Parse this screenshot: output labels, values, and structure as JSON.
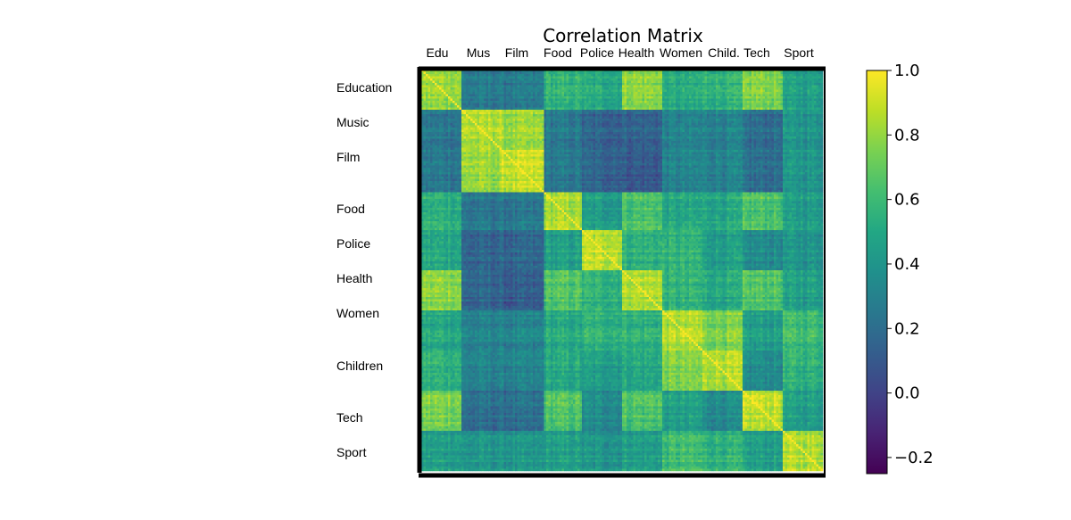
{
  "chart_data": {
    "type": "heatmap",
    "title": "Correlation Matrix",
    "colormap": "viridis",
    "categories_top": [
      "Edu",
      "Mus",
      "Film",
      "Food",
      "Police",
      "Health",
      "Women",
      "Child.",
      "Tech",
      "Sport"
    ],
    "categories_left": [
      "Education",
      "Music",
      "Film",
      "Food",
      "Police",
      "Health",
      "Women",
      "Children",
      "Tech",
      "Sport"
    ],
    "block_fractions": [
      0.1,
      0.1,
      0.1,
      0.095,
      0.1,
      0.1,
      0.1,
      0.095,
      0.1,
      0.1
    ],
    "block_correlation": [
      [
        0.8,
        0.25,
        0.25,
        0.55,
        0.5,
        0.78,
        0.5,
        0.55,
        0.75,
        0.45
      ],
      [
        0.25,
        0.85,
        0.8,
        0.25,
        0.15,
        0.15,
        0.3,
        0.3,
        0.2,
        0.4
      ],
      [
        0.25,
        0.8,
        0.88,
        0.25,
        0.15,
        0.1,
        0.3,
        0.3,
        0.2,
        0.4
      ],
      [
        0.55,
        0.25,
        0.25,
        0.85,
        0.45,
        0.65,
        0.5,
        0.5,
        0.65,
        0.45
      ],
      [
        0.5,
        0.15,
        0.15,
        0.45,
        0.88,
        0.55,
        0.55,
        0.45,
        0.35,
        0.4
      ],
      [
        0.78,
        0.15,
        0.1,
        0.65,
        0.55,
        0.85,
        0.55,
        0.5,
        0.65,
        0.45
      ],
      [
        0.5,
        0.3,
        0.3,
        0.5,
        0.55,
        0.55,
        0.85,
        0.75,
        0.45,
        0.6
      ],
      [
        0.55,
        0.3,
        0.3,
        0.5,
        0.45,
        0.5,
        0.75,
        0.85,
        0.35,
        0.55
      ],
      [
        0.75,
        0.2,
        0.2,
        0.65,
        0.35,
        0.65,
        0.45,
        0.35,
        0.88,
        0.45
      ],
      [
        0.45,
        0.4,
        0.4,
        0.45,
        0.4,
        0.45,
        0.6,
        0.55,
        0.45,
        0.85
      ]
    ],
    "diagonal_value": 1.0,
    "colorbar": {
      "vmin": -0.25,
      "vmax": 1.0,
      "ticks": [
        1.0,
        0.8,
        0.6,
        0.4,
        0.2,
        0.0,
        -0.2
      ],
      "tick_labels": [
        "1.0",
        "0.8",
        "0.6",
        "0.4",
        "0.2",
        "0.0",
        "−0.2"
      ]
    }
  }
}
